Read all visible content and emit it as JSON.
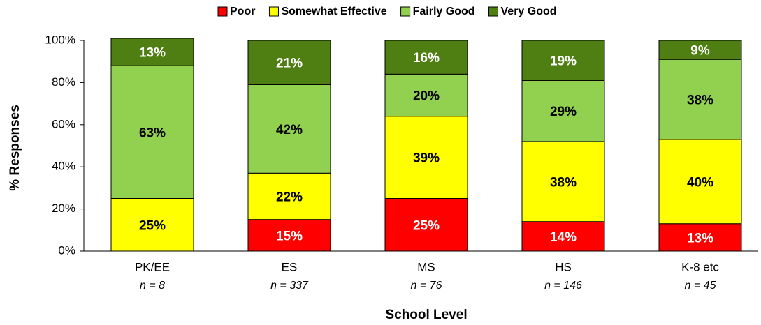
{
  "chart_data": {
    "type": "stacked_bar",
    "x_label": "School Level",
    "y_label": "% Responses",
    "categories": [
      "PK/EE",
      "ES",
      "MS",
      "HS",
      "K-8 etc"
    ],
    "n_labels": [
      "n = 8",
      "n = 337",
      "n = 76",
      "n = 146",
      "n = 45"
    ],
    "series": [
      {
        "name": "Poor",
        "color": "#ff0000",
        "label_color": "#ffffff",
        "values": [
          0,
          15,
          25,
          14,
          13
        ],
        "value_labels": [
          null,
          "15%",
          "25%",
          "14%",
          "13%"
        ]
      },
      {
        "name": "Somewhat Effective",
        "color": "#ffff00",
        "label_color": "#000000",
        "values": [
          25,
          22,
          39,
          38,
          40
        ],
        "value_labels": [
          "25%",
          "22%",
          "39%",
          "38%",
          "40%"
        ]
      },
      {
        "name": "Fairly Good",
        "color": "#92d050",
        "label_color": "#000000",
        "values": [
          63,
          42,
          20,
          29,
          38
        ],
        "value_labels": [
          "63%",
          "42%",
          "20%",
          "29%",
          "38%"
        ]
      },
      {
        "name": "Very Good",
        "color": "#4f7f12",
        "label_color": "#ffffff",
        "values": [
          13,
          21,
          16,
          19,
          9
        ],
        "value_labels": [
          "13%",
          "21%",
          "16%",
          "19%",
          "9%"
        ]
      }
    ],
    "ylim": [
      0,
      100
    ],
    "yticks": [
      {
        "value": 0,
        "label": "0%"
      },
      {
        "value": 20,
        "label": "20%"
      },
      {
        "value": 40,
        "label": "40%"
      },
      {
        "value": 60,
        "label": "60%"
      },
      {
        "value": 80,
        "label": "80%"
      },
      {
        "value": 100,
        "label": "100%"
      }
    ],
    "legend": "top"
  }
}
